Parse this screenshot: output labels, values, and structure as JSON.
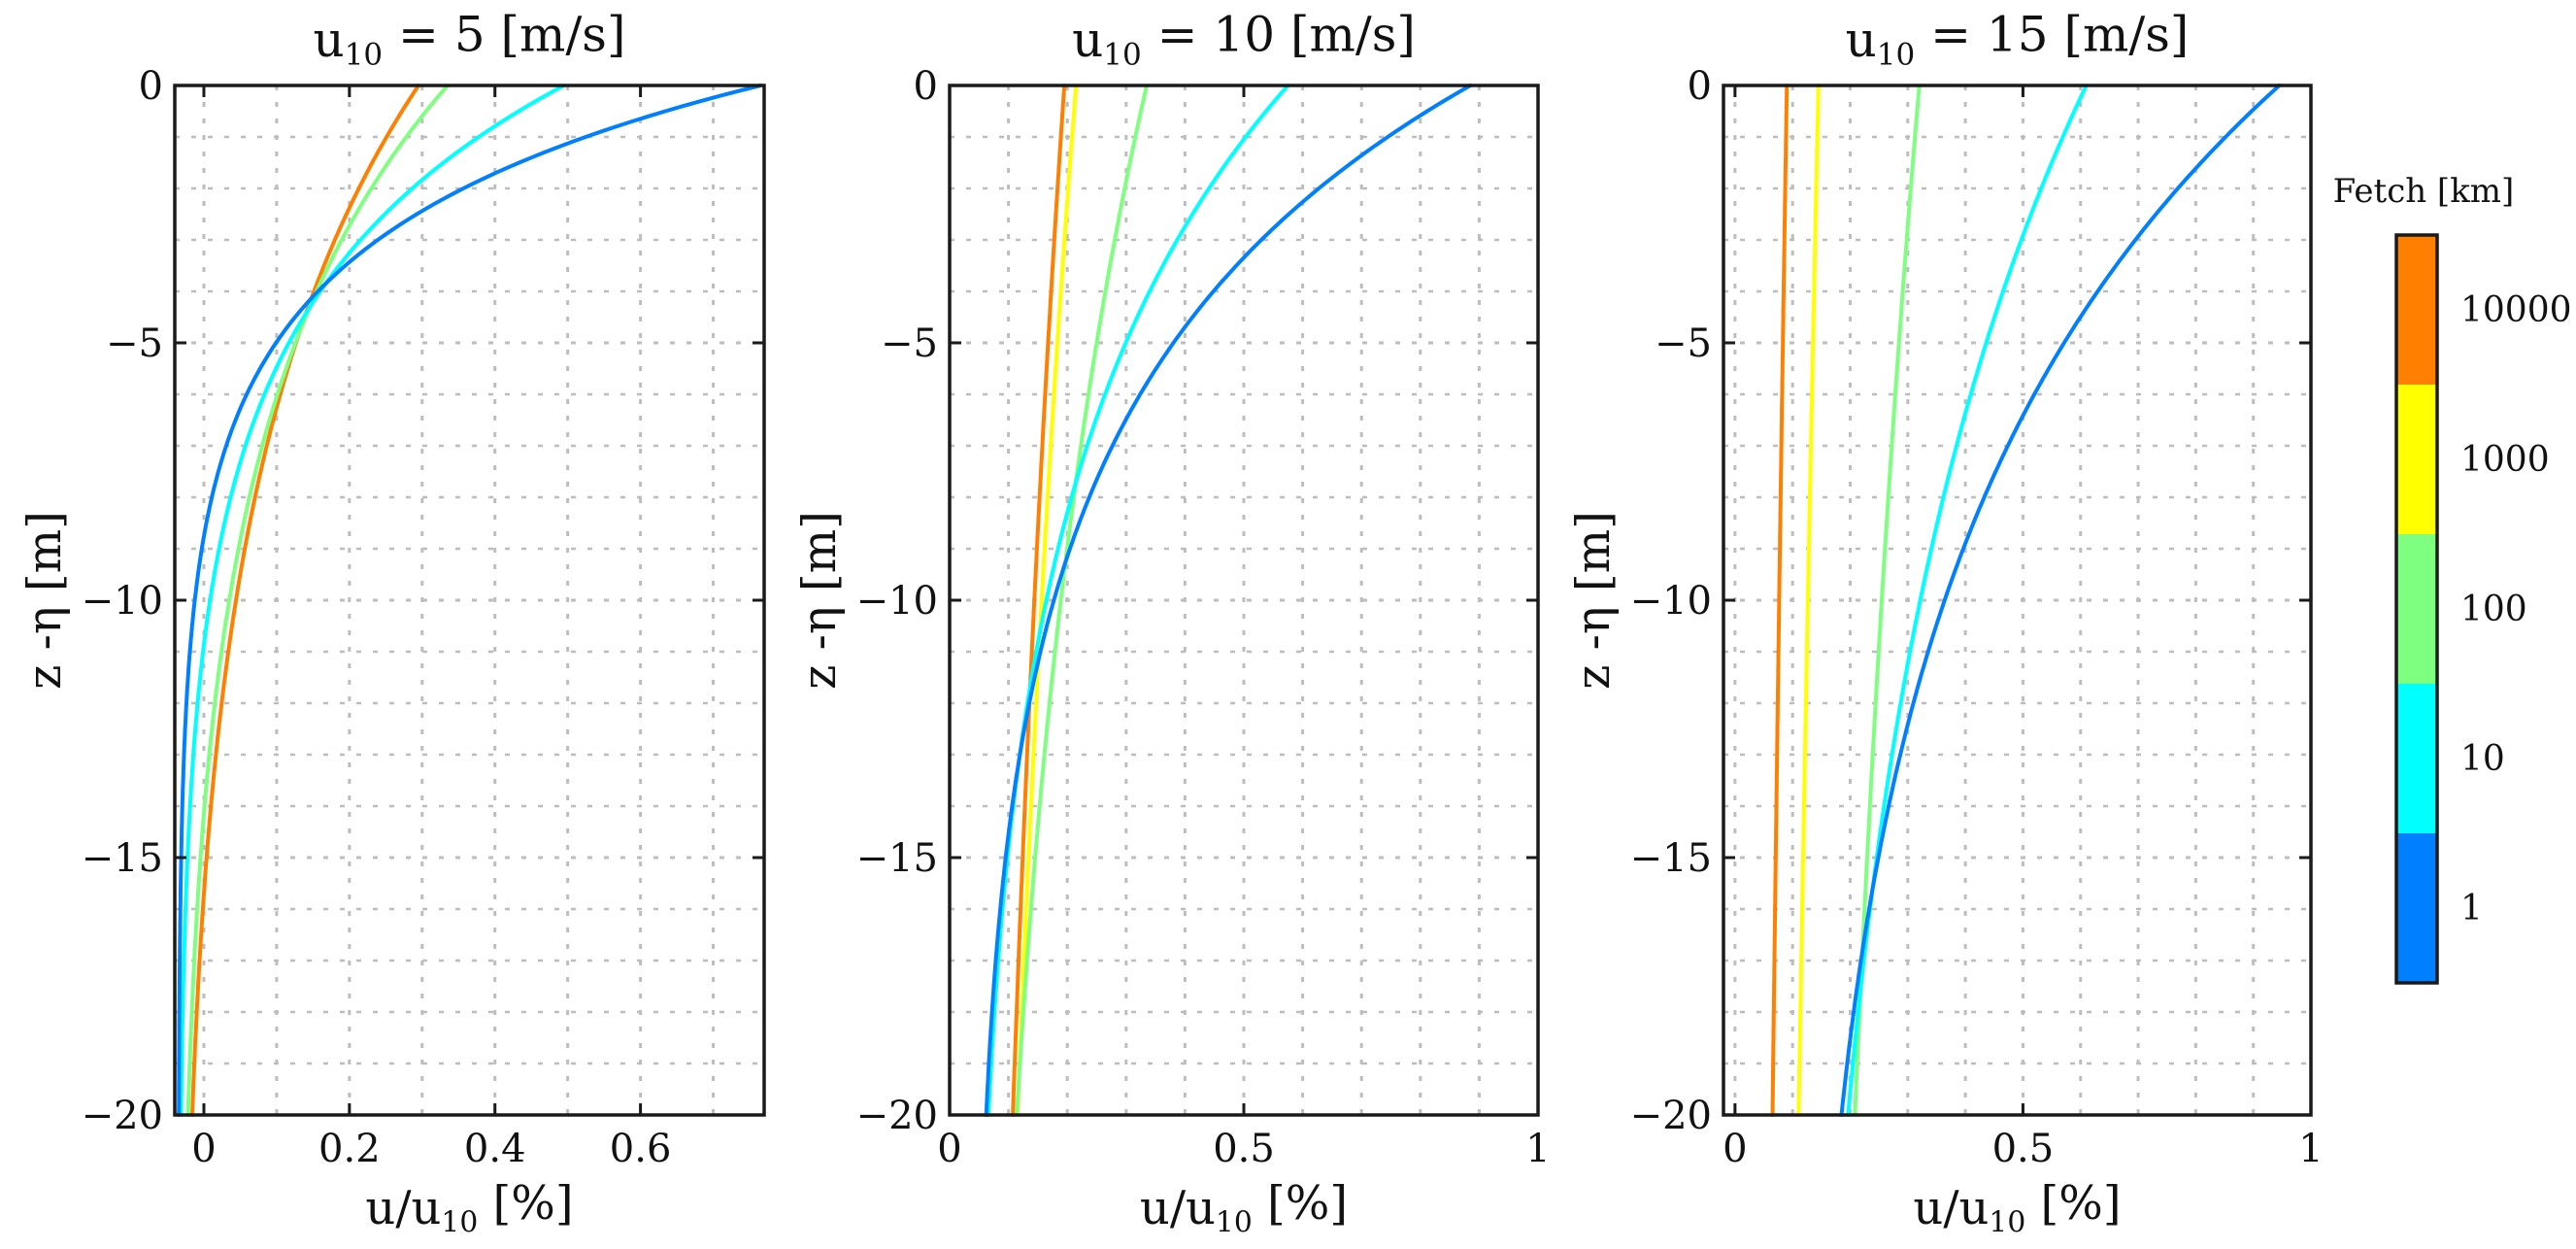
{
  "chart_data": {
    "type": "line",
    "colorbar": {
      "title": "Fetch [km]",
      "categories": [
        {
          "label": "10000",
          "color": "#FF7F00"
        },
        {
          "label": "1000",
          "color": "#FFFF00"
        },
        {
          "label": "100",
          "color": "#7FFF7F"
        },
        {
          "label": "10",
          "color": "#00FFFF"
        },
        {
          "label": "1",
          "color": "#007FFF"
        }
      ]
    },
    "panels": [
      {
        "title_main": "u",
        "title_sub": "10",
        "title_rest": " = 5 [m/s]",
        "xlabel_main": "u/u",
        "xlabel_sub": "10",
        "xlabel_rest": " [%]",
        "ylabel": "z -η [m]",
        "xlim": [
          -0.04,
          0.77
        ],
        "ylim": [
          -20,
          0
        ],
        "xticks": [
          0,
          0.2,
          0.4,
          0.6
        ],
        "xtick_labels": [
          "0",
          "0.2",
          "0.4",
          "0.6"
        ],
        "yticks": [
          0,
          -5,
          -10,
          -15,
          -20
        ],
        "ytick_labels": [
          "0",
          "−5",
          "−10",
          "−15",
          "−20"
        ],
        "series": [
          {
            "fetch": "10000",
            "color": "#FF7F00",
            "surface": 0.295,
            "bottom": -0.035,
            "decay": 7.0
          },
          {
            "fetch": "100",
            "color": "#7FFF7F",
            "surface": 0.335,
            "bottom": -0.035,
            "decay": 6.0
          },
          {
            "fetch": "10",
            "color": "#00FFFF",
            "surface": 0.495,
            "bottom": -0.035,
            "decay": 4.0
          },
          {
            "fetch": "1",
            "color": "#007FFF",
            "surface": 0.765,
            "bottom": -0.035,
            "decay": 2.8
          }
        ]
      },
      {
        "title_main": "u",
        "title_sub": "10",
        "title_rest": " = 10 [m/s]",
        "xlabel_main": "u/u",
        "xlabel_sub": "10",
        "xlabel_rest": " [%]",
        "ylabel": "z -η [m]",
        "xlim": [
          0,
          1
        ],
        "ylim": [
          -20,
          0
        ],
        "xticks": [
          0,
          0.5,
          1
        ],
        "xtick_labels": [
          "0",
          "0.5",
          "1"
        ],
        "yticks": [
          0,
          -5,
          -10,
          -15,
          -20
        ],
        "ytick_labels": [
          "0",
          "−5",
          "−10",
          "−15",
          "−20"
        ],
        "series": [
          {
            "fetch": "10000",
            "color": "#FF7F00",
            "surface": 0.195,
            "bottom": 0.015,
            "decay": 30
          },
          {
            "fetch": "1000",
            "color": "#FFFF00",
            "surface": 0.215,
            "bottom": 0.02,
            "decay": 28
          },
          {
            "fetch": "100",
            "color": "#7FFF7F",
            "surface": 0.335,
            "bottom": 0.035,
            "decay": 15
          },
          {
            "fetch": "10",
            "color": "#00FFFF",
            "surface": 0.575,
            "bottom": 0.035,
            "decay": 7.0
          },
          {
            "fetch": "1",
            "color": "#007FFF",
            "surface": 0.885,
            "bottom": 0.04,
            "decay": 5.5
          }
        ]
      },
      {
        "title_main": "u",
        "title_sub": "10",
        "title_rest": " = 15 [m/s]",
        "xlabel_main": "u/u",
        "xlabel_sub": "10",
        "xlabel_rest": " [%]",
        "ylabel": "z -η [m]",
        "xlim": [
          -0.02,
          1
        ],
        "ylim": [
          -20,
          0
        ],
        "xticks": [
          0,
          0.5,
          1
        ],
        "xtick_labels": [
          "0",
          "0.5",
          "1"
        ],
        "yticks": [
          0,
          -5,
          -10,
          -15,
          -20
        ],
        "ytick_labels": [
          "0",
          "−5",
          "−10",
          "−15",
          "−20"
        ],
        "series": [
          {
            "fetch": "10000",
            "color": "#FF7F00",
            "surface": 0.09,
            "bottom": -0.01,
            "decay": 70
          },
          {
            "fetch": "1000",
            "color": "#FFFF00",
            "surface": 0.145,
            "bottom": 0.015,
            "decay": 65
          },
          {
            "fetch": "100",
            "color": "#7FFF7F",
            "surface": 0.32,
            "bottom": 0.09,
            "decay": 30
          },
          {
            "fetch": "10",
            "color": "#00FFFF",
            "surface": 0.61,
            "bottom": 0.1,
            "decay": 12
          },
          {
            "fetch": "1",
            "color": "#007FFF",
            "surface": 0.945,
            "bottom": 0.105,
            "decay": 8.5
          }
        ]
      }
    ]
  }
}
